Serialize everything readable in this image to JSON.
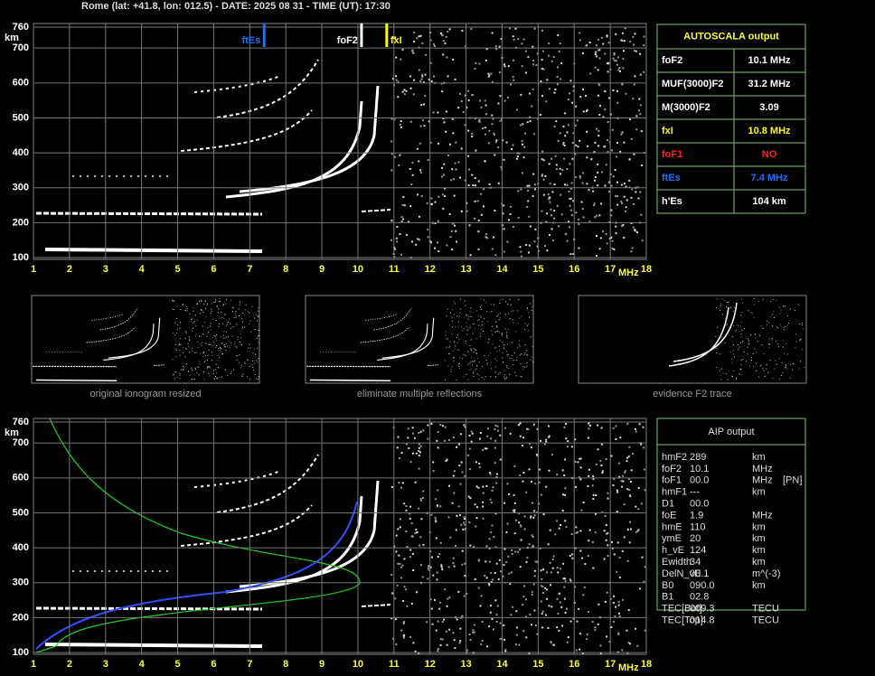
{
  "header": "Rome (lat: +41.8, lon: 012.5) - DATE: 2025 08 31 - TIME (UT): 17:30",
  "ionogram": {
    "xlim": [
      1,
      18
    ],
    "ylim": [
      100,
      760
    ],
    "xticks": [
      1,
      2,
      3,
      4,
      5,
      6,
      7,
      8,
      9,
      10,
      11,
      12,
      13,
      14,
      15,
      16,
      17,
      18
    ],
    "yticks": [
      100,
      200,
      300,
      400,
      500,
      600,
      700,
      760
    ],
    "x_unit": "MHz",
    "y_unit": "km",
    "grid": true,
    "markers": [
      {
        "label": "ftEs",
        "value": 7.4,
        "color": "#1e6fff"
      },
      {
        "label": "foF2",
        "value": 10.1,
        "color": "#ffffff"
      },
      {
        "label": "fxI",
        "value": 10.8,
        "color": "#ffff00"
      }
    ]
  },
  "autoscala": {
    "title": "AUTOSCALA output",
    "rows": [
      {
        "name": "foF2",
        "value": "10.1 MHz",
        "color": "#ffffff"
      },
      {
        "name": "MUF(3000)F2",
        "value": "31.2 MHz",
        "color": "#ffffff"
      },
      {
        "name": "M(3000)F2",
        "value": "3.09",
        "color": "#ffffff"
      },
      {
        "name": "fxI",
        "value": "10.8 MHz",
        "color": "#ffff00"
      },
      {
        "name": "foF1",
        "value": "NO",
        "color": "#ff2020"
      },
      {
        "name": "ftEs",
        "value": "7.4 MHz",
        "color": "#1e6fff"
      },
      {
        "name": "h'Es",
        "value": "104     km",
        "color": "#ffffff"
      }
    ]
  },
  "thumbnails": [
    "original ionogram resized",
    "eliminate multiple reflections",
    "evidence F2 trace"
  ],
  "aip": {
    "title": "AIP output",
    "rows": [
      [
        "hmF2",
        "289",
        "km"
      ],
      [
        "foF2",
        "10.1",
        "MHz"
      ],
      [
        "foF1",
        "00.0",
        "MHz",
        "[PN]"
      ],
      [
        "hmF1",
        "---",
        "km"
      ],
      [
        "D1",
        "00.0"
      ],
      [
        "foE",
        "1.9",
        "MHz"
      ],
      [
        "hmE",
        "110",
        "km"
      ],
      [
        "ymE",
        "20",
        "km"
      ],
      [
        "h_vE",
        "124",
        "km"
      ],
      [
        "Ewidth",
        "34",
        "km"
      ],
      [
        "DelN_vE",
        "00.1",
        "m^(-3)"
      ],
      [
        "B0",
        "090.0",
        "km"
      ],
      [
        "B1",
        "02.8"
      ],
      [
        "TEC[Bot]",
        "009.3",
        "TECU"
      ],
      [
        "TEC[Top]",
        "014.8",
        "TECU"
      ]
    ]
  }
}
